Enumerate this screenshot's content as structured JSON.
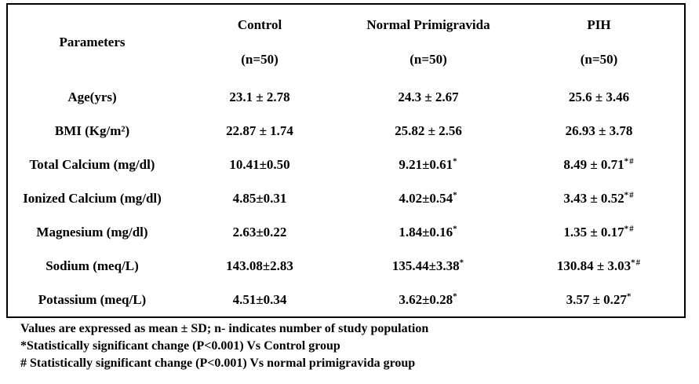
{
  "table": {
    "header": {
      "param_label": "Parameters",
      "columns": [
        {
          "title": "Control",
          "n": "(n=50)"
        },
        {
          "title": "Normal Primigravida",
          "n": "(n=50)"
        },
        {
          "title": "PIH",
          "n": "(n=50)"
        }
      ]
    },
    "rows": [
      {
        "param": "Age(yrs)",
        "values": [
          "23.1 ± 2.78",
          "24.3 ± 2.67",
          "25.6 ± 3.46"
        ],
        "sups": [
          "",
          "",
          ""
        ]
      },
      {
        "param": "BMI (Kg/m²)",
        "values": [
          "22.87 ± 1.74",
          "25.82 ± 2.56",
          "26.93 ± 3.78"
        ],
        "sups": [
          "",
          "",
          ""
        ]
      },
      {
        "param": "Total Calcium (mg/dl)",
        "values": [
          "10.41±0.50",
          "9.21±0.61",
          "8.49 ± 0.71"
        ],
        "sups": [
          "",
          "*",
          "*#"
        ]
      },
      {
        "param": "Ionized Calcium (mg/dl)",
        "values": [
          "4.85±0.31",
          "4.02±0.54",
          "3.43 ± 0.52"
        ],
        "sups": [
          "",
          "*",
          "*#"
        ]
      },
      {
        "param": "Magnesium (mg/dl)",
        "values": [
          "2.63±0.22",
          "1.84±0.16",
          "1.35 ± 0.17"
        ],
        "sups": [
          "",
          "*",
          "*#"
        ]
      },
      {
        "param": "Sodium (meq/L)",
        "values": [
          "143.08±2.83",
          "135.44±3.38",
          "130.84 ± 3.03"
        ],
        "sups": [
          "",
          "*",
          "*#"
        ]
      },
      {
        "param": "Potassium (meq/L)",
        "values": [
          "4.51±0.34",
          "3.62±0.28",
          "3.57 ± 0.27"
        ],
        "sups": [
          "",
          "*",
          "*"
        ]
      }
    ]
  },
  "footnotes": {
    "line1": "Values are expressed as mean ± SD; n- indicates number of study population",
    "line2": "*Statistically significant change (P<0.001) Vs Control group",
    "line3": "# Statistically significant change (P<0.001) Vs normal primigravida group"
  },
  "colors": {
    "border": "#000000",
    "text": "#000000",
    "background": "#ffffff"
  }
}
